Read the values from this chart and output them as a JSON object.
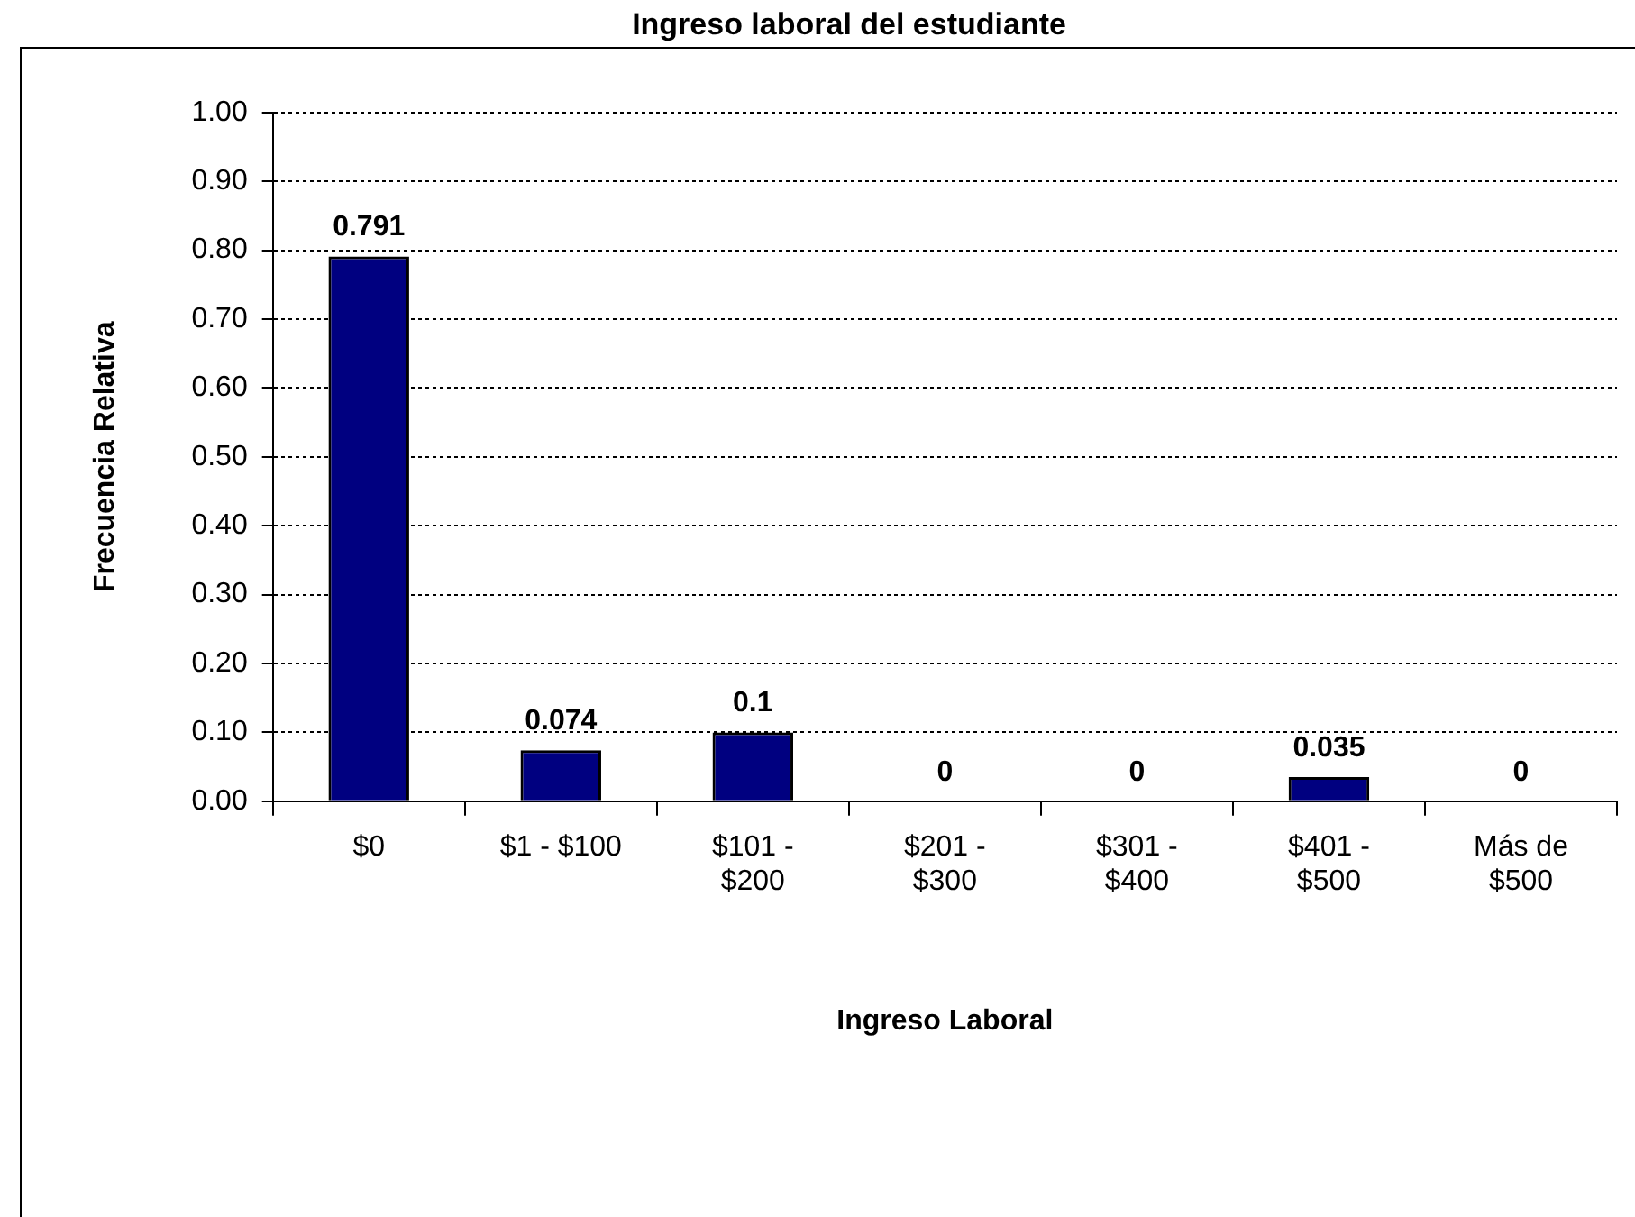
{
  "chart_data": {
    "type": "bar",
    "title": "Ingreso laboral del estudiante",
    "xlabel": "Ingreso Laboral",
    "ylabel": "Frecuencia Relativa",
    "categories": [
      "$0",
      "$1 - $100",
      "$101 -\n$200",
      "$201 -\n$300",
      "$301 -\n$400",
      "$401 -\n$500",
      "Más de\n$500"
    ],
    "values": [
      0.791,
      0.074,
      0.1,
      0,
      0,
      0.035,
      0
    ],
    "color": "#000080",
    "ylim": [
      0,
      1
    ],
    "yticks": [
      {
        "value": 0,
        "label": "0.00"
      },
      {
        "value": 0.1,
        "label": "0.10"
      },
      {
        "value": 0.2,
        "label": "0.20"
      },
      {
        "value": 0.3,
        "label": "0.30"
      },
      {
        "value": 0.4,
        "label": "0.40"
      },
      {
        "value": 0.5,
        "label": "0.50"
      },
      {
        "value": 0.6,
        "label": "0.60"
      },
      {
        "value": 0.7,
        "label": "0.70"
      },
      {
        "value": 0.8,
        "label": "0.80"
      },
      {
        "value": 0.9,
        "label": "0.90"
      },
      {
        "value": 1,
        "label": "1.00"
      }
    ],
    "grid": "y",
    "legend": false,
    "data_labels": true
  }
}
